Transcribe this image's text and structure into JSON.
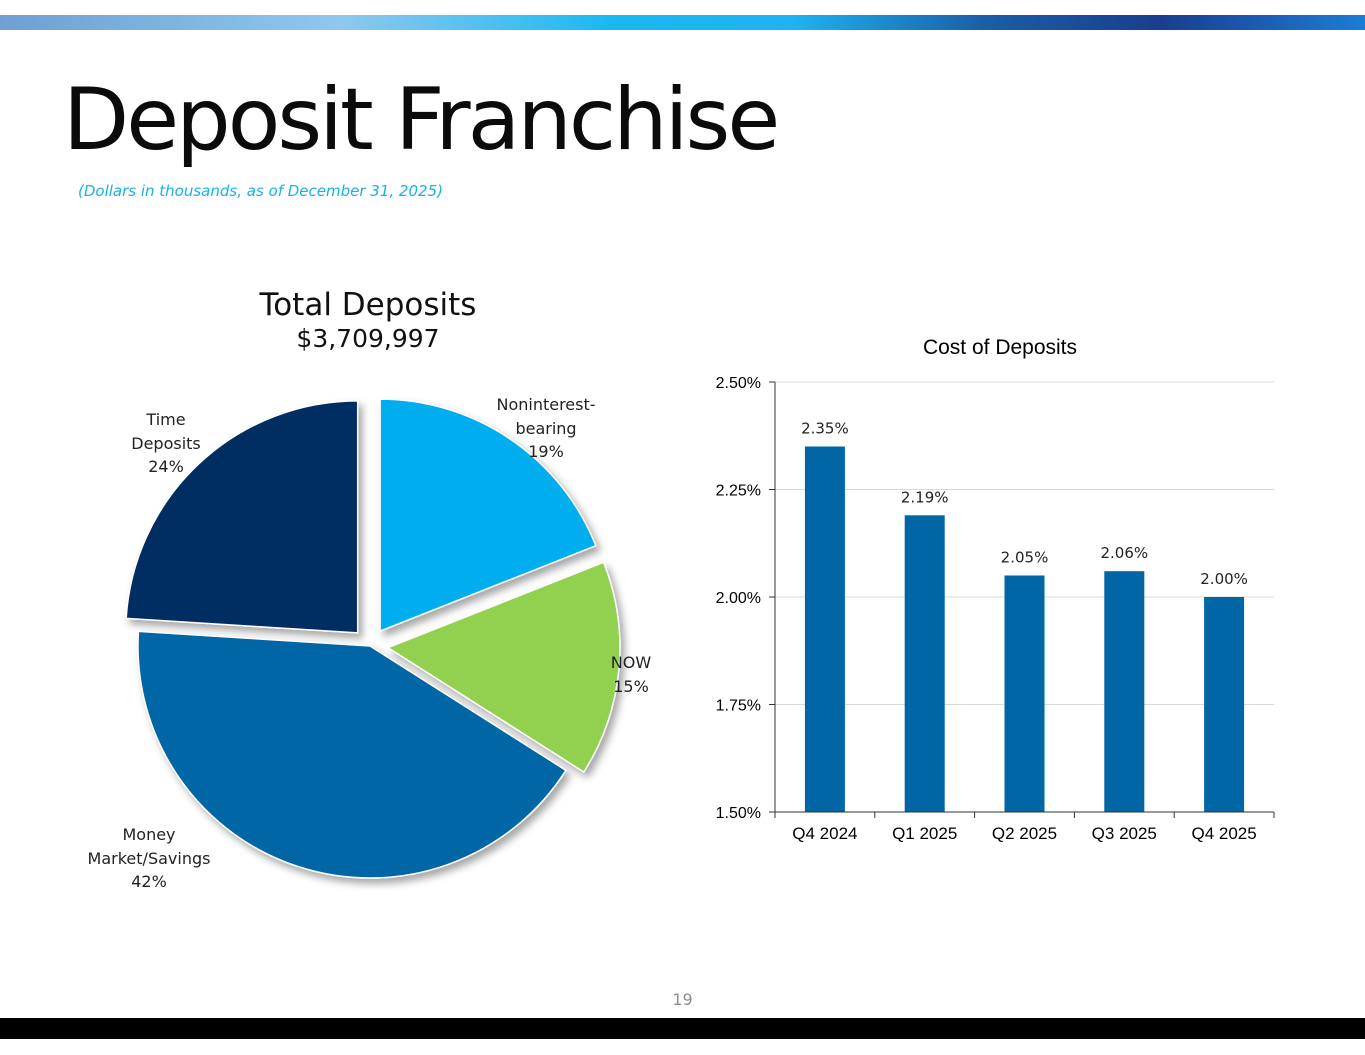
{
  "slide": {
    "title": "Deposit Franchise",
    "subtitle": "(Dollars in thousands, as of December 31, 2025)",
    "page_number": "19"
  },
  "colors": {
    "stripe_start": "#6f9fd4",
    "stripe_mid": "#19b8f2",
    "stripe_end": "#1c7dd6",
    "subtitle": "#17b2ea",
    "bar": "#0066a6"
  },
  "chart_data": [
    {
      "type": "pie",
      "title": "Total Deposits",
      "total": "$3,709,997",
      "slices": [
        {
          "name": "Noninterest-bearing",
          "label_lines": [
            "Noninterest-",
            "bearing"
          ],
          "pct_label": "19%",
          "value": 19,
          "color": "#00aeef",
          "exploded": true
        },
        {
          "name": "NOW",
          "label_lines": [
            "NOW"
          ],
          "pct_label": "15%",
          "value": 15,
          "color": "#92d050",
          "exploded": true
        },
        {
          "name": "Money Market/Savings",
          "label_lines": [
            "Money",
            "Market/Savings"
          ],
          "pct_label": "42%",
          "value": 42,
          "color": "#0066a6",
          "exploded": false
        },
        {
          "name": "Time Deposits",
          "label_lines": [
            "Time",
            "Deposits"
          ],
          "pct_label": "24%",
          "value": 24,
          "color": "#002d62",
          "exploded": true
        }
      ]
    },
    {
      "type": "bar",
      "title": "Cost of Deposits",
      "categories": [
        "Q4 2024",
        "Q1 2025",
        "Q2 2025",
        "Q3 2025",
        "Q4 2025"
      ],
      "values": [
        2.35,
        2.19,
        2.05,
        2.06,
        2.0
      ],
      "data_labels": [
        "2.35%",
        "2.19%",
        "2.05%",
        "2.06%",
        "2.00%"
      ],
      "ylim": [
        1.5,
        2.5
      ],
      "yticks": [
        1.5,
        1.75,
        2.0,
        2.25,
        2.5
      ],
      "ytick_labels": [
        "1.50%",
        "1.75%",
        "2.00%",
        "2.25%",
        "2.50%"
      ],
      "grid": true,
      "color": "#0066a6"
    }
  ]
}
